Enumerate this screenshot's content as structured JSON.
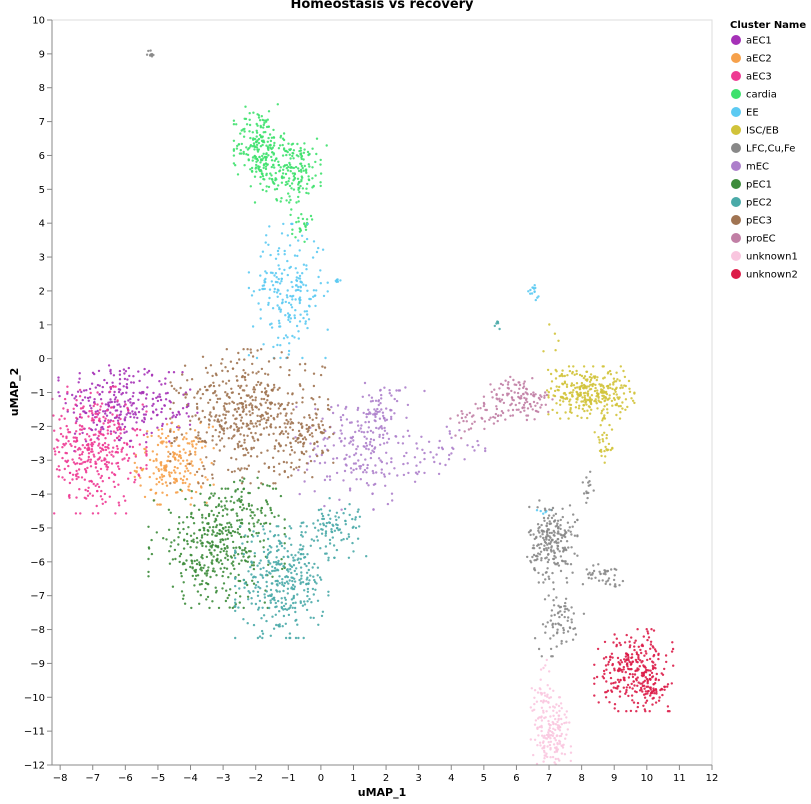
{
  "chart_data": {
    "type": "scatter",
    "title": "Homeostasis vs recovery",
    "xlabel": "uMAP_1",
    "ylabel": "uMAP_2",
    "xlim": [
      -8.25,
      12
    ],
    "ylim": [
      -12,
      10
    ],
    "x_ticks": [
      -8,
      -7,
      -6,
      -5,
      -4,
      -3,
      -2,
      -1,
      0,
      1,
      2,
      3,
      4,
      5,
      6,
      7,
      8,
      9,
      10,
      11,
      12
    ],
    "y_ticks": [
      -12,
      -11,
      -10,
      -9,
      -8,
      -7,
      -6,
      -5,
      -4,
      -3,
      -2,
      -1,
      0,
      1,
      2,
      3,
      4,
      5,
      6,
      7,
      8,
      9,
      10
    ],
    "grid": false,
    "legend": {
      "title": "Cluster Name",
      "placement": "top-right"
    },
    "series": [
      {
        "name": "aEC1",
        "color": "#a531b7",
        "clusters": [
          {
            "cx": -6.4,
            "cy": -1.3,
            "sx": 0.75,
            "sy": 0.65,
            "n": 200
          },
          {
            "cx": -5.0,
            "cy": -1.5,
            "sx": 0.55,
            "sy": 0.5,
            "n": 80
          }
        ]
      },
      {
        "name": "aEC2",
        "color": "#f6a14b",
        "clusters": [
          {
            "cx": -4.5,
            "cy": -3.1,
            "sx": 0.55,
            "sy": 0.55,
            "n": 200
          }
        ]
      },
      {
        "name": "aEC3",
        "color": "#ee3a93",
        "clusters": [
          {
            "cx": -7.0,
            "cy": -2.7,
            "sx": 0.75,
            "sy": 0.85,
            "n": 380
          }
        ]
      },
      {
        "name": "cardia",
        "color": "#3ee16d",
        "clusters": [
          {
            "cx": -1.9,
            "cy": 6.3,
            "sx": 0.35,
            "sy": 0.55,
            "n": 180
          },
          {
            "cx": -0.9,
            "cy": 5.6,
            "sx": 0.55,
            "sy": 0.45,
            "n": 200
          },
          {
            "cx": -0.6,
            "cy": 4.0,
            "sx": 0.15,
            "sy": 0.25,
            "n": 25
          }
        ]
      },
      {
        "name": "EE",
        "color": "#5ccaf2",
        "clusters": [
          {
            "cx": -1.0,
            "cy": 2.0,
            "sx": 0.55,
            "sy": 0.9,
            "n": 210
          },
          {
            "cx": 0.5,
            "cy": 2.3,
            "sx": 0.08,
            "sy": 0.05,
            "n": 8
          },
          {
            "cx": 6.5,
            "cy": 1.95,
            "sx": 0.1,
            "sy": 0.1,
            "n": 14
          },
          {
            "cx": 6.85,
            "cy": -4.5,
            "sx": 0.1,
            "sy": 0.08,
            "n": 6
          }
        ]
      },
      {
        "name": "ISC/EB",
        "color": "#d1c33a",
        "clusters": [
          {
            "cx": 8.3,
            "cy": -1.0,
            "sx": 0.6,
            "sy": 0.35,
            "n": 300
          },
          {
            "cx": 7.2,
            "cy": 0.0,
            "sx": 0.2,
            "sy": 0.6,
            "n": 18
          },
          {
            "cx": 8.7,
            "cy": -2.5,
            "sx": 0.15,
            "sy": 0.5,
            "n": 30
          }
        ]
      },
      {
        "name": "LFC,Cu,Fe",
        "color": "#888888",
        "clusters": [
          {
            "cx": 7.1,
            "cy": -5.4,
            "sx": 0.35,
            "sy": 0.55,
            "n": 220
          },
          {
            "cx": 7.3,
            "cy": -7.8,
            "sx": 0.35,
            "sy": 0.45,
            "n": 70
          },
          {
            "cx": 8.7,
            "cy": -6.4,
            "sx": 0.3,
            "sy": 0.15,
            "n": 40
          },
          {
            "cx": -5.2,
            "cy": 9.0,
            "sx": 0.06,
            "sy": 0.06,
            "n": 10
          },
          {
            "cx": 8.2,
            "cy": -3.8,
            "sx": 0.1,
            "sy": 0.3,
            "n": 14
          }
        ]
      },
      {
        "name": "mEC",
        "color": "#ad7fcb",
        "clusters": [
          {
            "cx": 1.2,
            "cy": -2.7,
            "sx": 0.9,
            "sy": 0.8,
            "n": 200
          },
          {
            "cx": 1.9,
            "cy": -1.6,
            "sx": 0.35,
            "sy": 0.4,
            "n": 60
          },
          {
            "cx": 3.5,
            "cy": -2.8,
            "sx": 0.7,
            "sy": 0.4,
            "n": 40
          }
        ]
      },
      {
        "name": "pEC1",
        "color": "#3d8c3b",
        "clusters": [
          {
            "cx": -3.2,
            "cy": -5.6,
            "sx": 0.95,
            "sy": 0.8,
            "n": 400
          },
          {
            "cx": -2.3,
            "cy": -4.4,
            "sx": 0.5,
            "sy": 0.4,
            "n": 60
          }
        ]
      },
      {
        "name": "pEC2",
        "color": "#4aaaa8",
        "clusters": [
          {
            "cx": -1.2,
            "cy": -6.6,
            "sx": 0.65,
            "sy": 0.75,
            "n": 340
          },
          {
            "cx": 0.4,
            "cy": -5.0,
            "sx": 0.45,
            "sy": 0.4,
            "n": 90
          },
          {
            "cx": 5.4,
            "cy": 1.0,
            "sx": 0.06,
            "sy": 0.06,
            "n": 6
          }
        ]
      },
      {
        "name": "pEC3",
        "color": "#a07452",
        "clusters": [
          {
            "cx": -2.2,
            "cy": -1.7,
            "sx": 1.1,
            "sy": 0.9,
            "n": 520
          },
          {
            "cx": -0.5,
            "cy": -2.4,
            "sx": 0.4,
            "sy": 0.5,
            "n": 60
          }
        ]
      },
      {
        "name": "proEC",
        "color": "#c17fa5",
        "clusters": [
          {
            "cx": 6.1,
            "cy": -1.2,
            "sx": 0.5,
            "sy": 0.3,
            "n": 120
          },
          {
            "cx": 4.9,
            "cy": -1.8,
            "sx": 0.45,
            "sy": 0.25,
            "n": 40
          }
        ]
      },
      {
        "name": "unknown1",
        "color": "#f9c6df",
        "clusters": [
          {
            "cx": 7.1,
            "cy": -11.1,
            "sx": 0.3,
            "sy": 0.5,
            "n": 160
          },
          {
            "cx": 6.8,
            "cy": -9.9,
            "sx": 0.15,
            "sy": 0.5,
            "n": 40
          }
        ]
      },
      {
        "name": "unknown2",
        "color": "#dc1c48",
        "clusters": [
          {
            "cx": 9.6,
            "cy": -9.2,
            "sx": 0.55,
            "sy": 0.55,
            "n": 280
          },
          {
            "cx": 10.2,
            "cy": -9.7,
            "sx": 0.15,
            "sy": 0.3,
            "n": 40
          }
        ]
      }
    ]
  }
}
